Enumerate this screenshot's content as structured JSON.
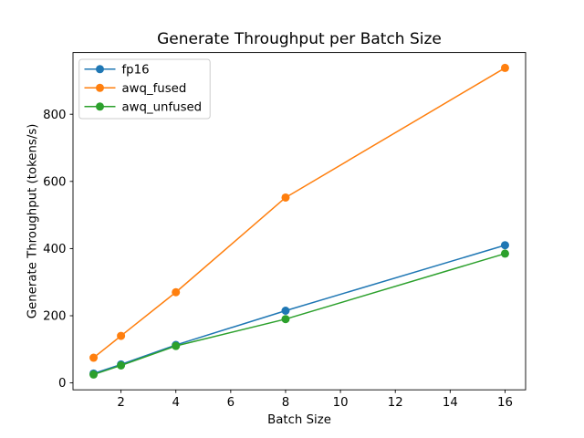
{
  "chart_data": {
    "type": "line",
    "title": "Generate Throughput per Batch Size",
    "xlabel": "Batch Size",
    "ylabel": "Generate Throughput (tokens/s)",
    "x": [
      1,
      2,
      4,
      8,
      16
    ],
    "series": [
      {
        "name": "fp16",
        "color": "#1f77b4",
        "values": [
          28,
          55,
          113,
          215,
          410
        ]
      },
      {
        "name": "awq_fused",
        "color": "#ff7f0e",
        "values": [
          75,
          140,
          270,
          552,
          938
        ]
      },
      {
        "name": "awq_unfused",
        "color": "#2ca02c",
        "values": [
          25,
          52,
          110,
          190,
          385
        ]
      }
    ],
    "xlim": [
      0.25,
      16.75
    ],
    "ylim": [
      -20.6,
      983.7
    ],
    "xticks": [
      2,
      4,
      6,
      8,
      10,
      12,
      14,
      16
    ],
    "yticks": [
      0,
      200,
      400,
      600,
      800
    ],
    "xtick_labels": [
      "2",
      "4",
      "6",
      "8",
      "10",
      "12",
      "14",
      "16"
    ],
    "ytick_labels": [
      "0",
      "200",
      "400",
      "600",
      "800"
    ],
    "grid": false,
    "legend_position": "upper left",
    "marker": "o",
    "line_width": 1.5,
    "marker_radius": 4.5
  },
  "colors": {
    "background": "#ffffff",
    "spine": "#000000",
    "tick": "#000000",
    "legend_border": "#cccccc",
    "legend_fill": "#ffffff"
  }
}
